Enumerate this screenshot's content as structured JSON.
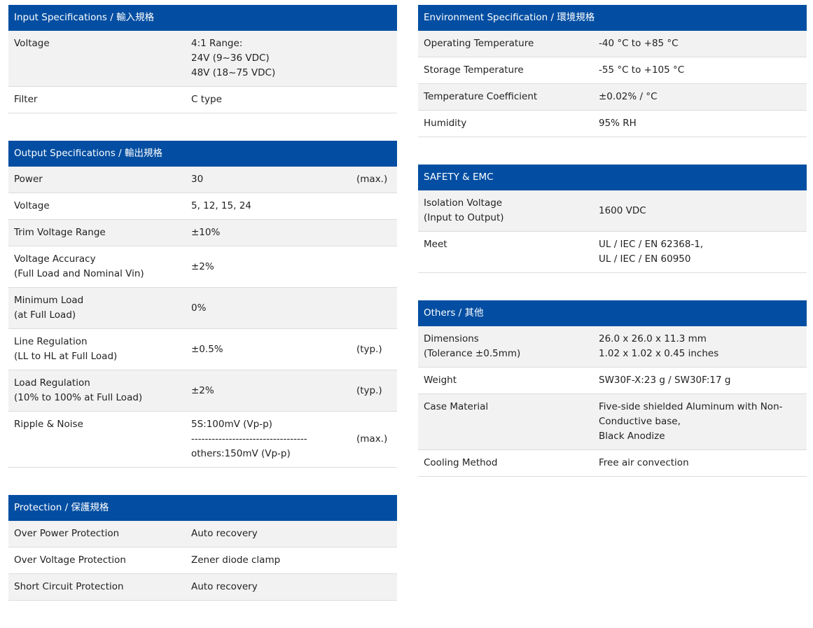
{
  "left": [
    {
      "title": "Input Specifications / 輸入規格",
      "rows": [
        {
          "label": [
            "Voltage"
          ],
          "value": [
            "4:1 Range:",
            "24V (9~36 VDC)",
            "48V (18~75 VDC)"
          ],
          "note": ""
        },
        {
          "label": [
            "Filter"
          ],
          "value": [
            "C type"
          ],
          "note": ""
        }
      ]
    },
    {
      "title": "Output Specifications / 輸出規格",
      "rows": [
        {
          "label": [
            "Power"
          ],
          "value": [
            "30"
          ],
          "note": "(max.)"
        },
        {
          "label": [
            "Voltage"
          ],
          "value": [
            "5, 12, 15, 24"
          ],
          "note": ""
        },
        {
          "label": [
            "Trim Voltage Range"
          ],
          "value": [
            "±10%"
          ],
          "note": ""
        },
        {
          "label": [
            "Voltage Accuracy",
            "(Full Load and Nominal Vin)"
          ],
          "value": [
            "±2%"
          ],
          "note": ""
        },
        {
          "label": [
            "Minimum Load",
            "(at Full Load)"
          ],
          "value": [
            "0%"
          ],
          "note": ""
        },
        {
          "label": [
            "Line Regulation",
            "(LL to HL at Full Load)"
          ],
          "value": [
            "±0.5%"
          ],
          "note": "(typ.)"
        },
        {
          "label": [
            "Load Regulation",
            "(10% to 100% at Full Load)"
          ],
          "value": [
            "±2%"
          ],
          "note": "(typ.)"
        },
        {
          "label": [
            "Ripple & Noise"
          ],
          "value": [
            "5S:100mV (Vp-p)",
            "----------------------------------",
            "others:150mV (Vp-p)"
          ],
          "note": "(max.)"
        }
      ]
    },
    {
      "title": "Protection / 保護規格",
      "rows": [
        {
          "label": [
            "Over Power Protection"
          ],
          "value": [
            "Auto recovery"
          ],
          "note": ""
        },
        {
          "label": [
            "Over Voltage Protection"
          ],
          "value": [
            "Zener diode clamp"
          ],
          "note": ""
        },
        {
          "label": [
            "Short Circuit Protection"
          ],
          "value": [
            "Auto recovery"
          ],
          "note": ""
        }
      ]
    }
  ],
  "right": [
    {
      "title": "Environment Specification / 環境規格",
      "rows": [
        {
          "label": [
            "Operating Temperature"
          ],
          "value": [
            "-40 °C to +85 °C"
          ]
        },
        {
          "label": [
            "Storage Temperature"
          ],
          "value": [
            "-55 °C to +105 °C"
          ]
        },
        {
          "label": [
            "Temperature Coefficient"
          ],
          "value": [
            "±0.02% / °C"
          ]
        },
        {
          "label": [
            "Humidity"
          ],
          "value": [
            "95% RH"
          ]
        }
      ]
    },
    {
      "title": "SAFETY & EMC",
      "rows": [
        {
          "label": [
            "Isolation Voltage",
            "(Input to Output)"
          ],
          "value": [
            "1600 VDC"
          ]
        },
        {
          "label": [
            "Meet"
          ],
          "value": [
            "UL / IEC / EN 62368-1,",
            "UL / IEC / EN 60950"
          ]
        }
      ]
    },
    {
      "title": "Others / 其他",
      "rows": [
        {
          "label": [
            "Dimensions",
            "(Tolerance ±0.5mm)"
          ],
          "value": [
            "26.0 x 26.0 x 11.3 mm",
            "1.02 x 1.02 x 0.45 inches"
          ]
        },
        {
          "label": [
            "Weight"
          ],
          "value": [
            "SW30F-X:23 g / SW30F:17 g"
          ]
        },
        {
          "label": [
            "Case Material"
          ],
          "value": [
            "Five-side shielded Aluminum with Non-",
            "Conductive base,",
            "Black Anodize"
          ]
        },
        {
          "label": [
            "Cooling Method"
          ],
          "value": [
            "Free air convection"
          ]
        }
      ]
    }
  ]
}
